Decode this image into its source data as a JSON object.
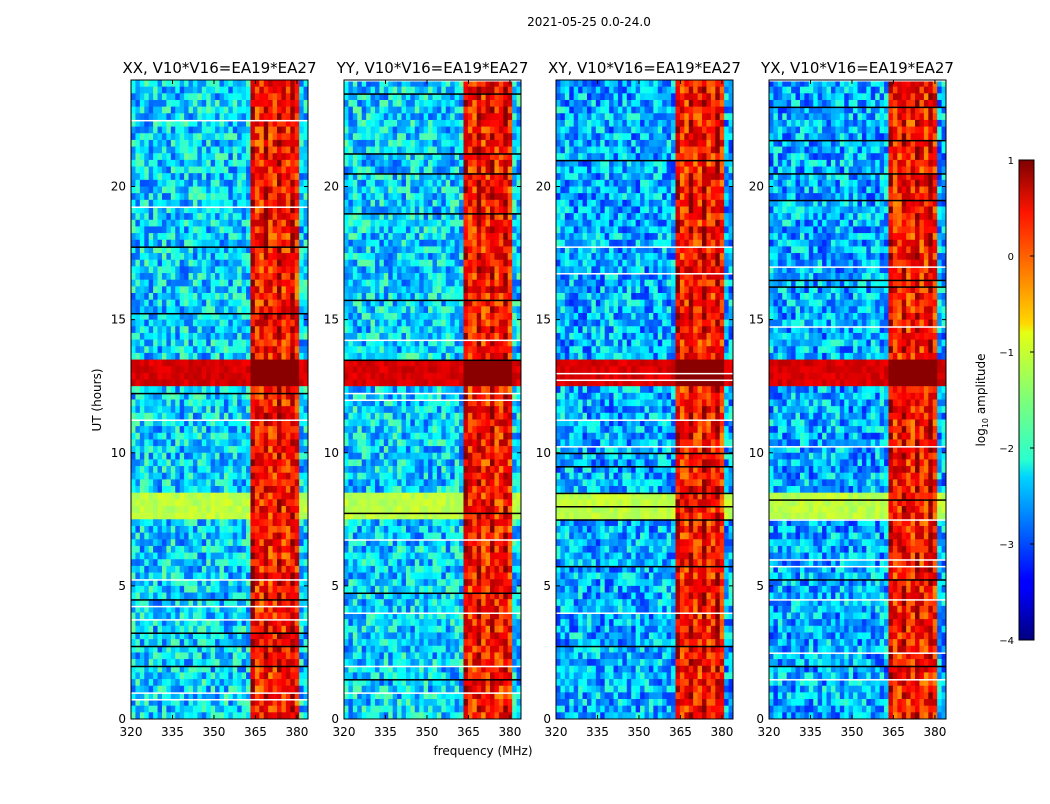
{
  "chart_data": {
    "type": "heatmap",
    "suptitle": "2021-05-25 0.0-24.0",
    "xlabel": "frequency (MHz)",
    "ylabel": "UT (hours)",
    "xlim": [
      320,
      384
    ],
    "ylim": [
      0,
      24
    ],
    "xticks": [
      320,
      335,
      350,
      365,
      380
    ],
    "xtick_labels": [
      "320",
      "335",
      "350",
      "365",
      "380"
    ],
    "yticks": [
      0,
      5,
      10,
      15,
      20
    ],
    "ytick_labels": [
      "0",
      "5",
      "10",
      "15",
      "20"
    ],
    "panels": [
      {
        "title": "XX, V10*V16=EA19*EA27",
        "pol": "XX"
      },
      {
        "title": "YY, V10*V16=EA19*EA27",
        "pol": "YY"
      },
      {
        "title": "XY, V10*V16=EA19*EA27",
        "pol": "XY"
      },
      {
        "title": "YX, V10*V16=EA19*EA27",
        "pol": "YX"
      }
    ],
    "colorbar": {
      "label": "log10 amplitude",
      "label_base": "log",
      "label_sub": "10",
      "label_rest": " amplitude",
      "range": [
        -4,
        1
      ],
      "ticks": [
        1,
        0,
        -1,
        -2,
        -3,
        -4
      ],
      "tick_labels": [
        "1",
        "0",
        "−1",
        "−2",
        "−3",
        "−4"
      ],
      "colormap": "jet"
    },
    "features": {
      "rfi_band_mhz": [
        363.5,
        380.5
      ],
      "rfi_level": 0.2,
      "bright_burst_hours": [
        12.4,
        13.6
      ],
      "background_level": -2.3
    }
  }
}
